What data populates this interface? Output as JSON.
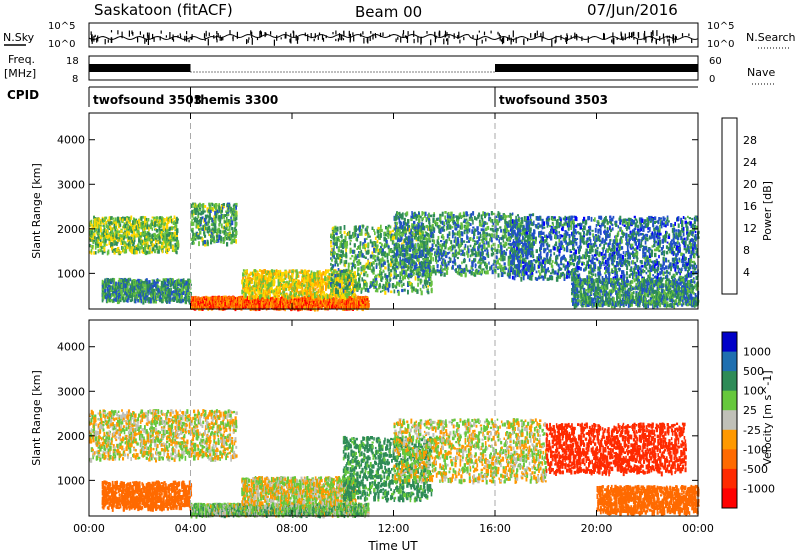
{
  "header": {
    "site": "Saskatoon (fitACF)",
    "beam": "Beam 00",
    "date": "07/Jun/2016"
  },
  "left_labels": {
    "nsky": "N.Sky",
    "freq": "Freq.",
    "freq_unit": "[MHz]",
    "cpid": "CPID"
  },
  "right_labels": {
    "nsearch": "N.Search",
    "nave": "Nave"
  },
  "noise_axis": {
    "left_top": "10^5",
    "left_bottom": "10^0",
    "right_top": "10^5",
    "right_bottom": "10^0"
  },
  "freq_axis": {
    "left_top": "18",
    "left_bottom": "8",
    "right_top": "60",
    "right_bottom": "0"
  },
  "cpid_segments": [
    {
      "label": "twofsound 3503",
      "start_hour": 0
    },
    {
      "label": "themis 3300",
      "start_hour": 4
    },
    {
      "label": "twofsound 3503",
      "start_hour": 16
    }
  ],
  "colors": {
    "power_scale": [
      "#0000ff",
      "#2050c8",
      "#2e8b57",
      "#66c040",
      "#ffd700",
      "#ffa500",
      "#ff6600",
      "#ff0000"
    ],
    "velocity_scale": [
      "#0000c8",
      "#1f6fb0",
      "#2e8b57",
      "#66c83c",
      "#c0c0b8",
      "#ff9900",
      "#ff6a00",
      "#ff2a00",
      "#ff0000"
    ],
    "ground_scatter": "#c0c0b8"
  },
  "chart_data": [
    {
      "type": "heatmap",
      "name": "power",
      "title": "",
      "xlabel": "",
      "ylabel": "Slant Range [km]",
      "xlim": [
        0,
        24
      ],
      "ylim": [
        200,
        4600
      ],
      "yticks": [
        "1000",
        "2000",
        "3000",
        "4000"
      ],
      "xticks": [
        "00:00",
        "04:00",
        "08:00",
        "12:00",
        "16:00",
        "20:00",
        "00:00"
      ],
      "colorbar_label": "Power [dB]",
      "colorbar_ticks": [
        "4",
        "8",
        "12",
        "16",
        "20",
        "24",
        "28"
      ],
      "colorbar_range": [
        0,
        30
      ],
      "regions": [
        {
          "t0": 0.0,
          "t1": 3.5,
          "r0": 1500,
          "r1": 2300,
          "value": 14
        },
        {
          "t0": 4.0,
          "t1": 5.8,
          "r0": 1700,
          "r1": 2600,
          "value": 12
        },
        {
          "t0": 0.5,
          "t1": 4.0,
          "r0": 400,
          "r1": 900,
          "value": 10
        },
        {
          "t0": 4.0,
          "t1": 11.0,
          "r0": 250,
          "r1": 500,
          "value": 26
        },
        {
          "t0": 6.0,
          "t1": 10.5,
          "r0": 500,
          "r1": 1100,
          "value": 18
        },
        {
          "t0": 9.5,
          "t1": 13.5,
          "r0": 600,
          "r1": 2100,
          "value": 12
        },
        {
          "t0": 12.0,
          "t1": 17.5,
          "r0": 1000,
          "r1": 2400,
          "value": 10
        },
        {
          "t0": 16.5,
          "t1": 24.0,
          "r0": 900,
          "r1": 2300,
          "value": 8
        },
        {
          "t0": 19.0,
          "t1": 24.0,
          "r0": 300,
          "r1": 900,
          "value": 10
        }
      ]
    },
    {
      "type": "heatmap",
      "name": "velocity",
      "title": "",
      "xlabel": "Time UT",
      "ylabel": "Slant Range [km]",
      "xlim": [
        0,
        24
      ],
      "ylim": [
        200,
        4600
      ],
      "yticks": [
        "1000",
        "2000",
        "3000",
        "4000"
      ],
      "xticks": [
        "00:00",
        "04:00",
        "08:00",
        "12:00",
        "16:00",
        "20:00",
        "00:00"
      ],
      "colorbar_label": "Velocity [m s^-1]",
      "colorbar_ticks": [
        "1000",
        "500",
        "100",
        "25",
        "-25",
        "-100",
        "-500",
        "-1000"
      ],
      "colorbar_range": [
        -1000,
        1000
      ],
      "regions": [
        {
          "t0": 0.0,
          "t1": 5.8,
          "r0": 1500,
          "r1": 2600,
          "value": 0
        },
        {
          "t0": 0.5,
          "t1": 4.0,
          "r0": 400,
          "r1": 1000,
          "value": -300
        },
        {
          "t0": 4.0,
          "t1": 11.0,
          "r0": 250,
          "r1": 500,
          "value": 60
        },
        {
          "t0": 6.0,
          "t1": 10.5,
          "r0": 500,
          "r1": 1100,
          "value": 0
        },
        {
          "t0": 10.0,
          "t1": 13.5,
          "r0": 600,
          "r1": 2000,
          "value": 150
        },
        {
          "t0": 12.0,
          "t1": 18.0,
          "r0": 1000,
          "r1": 2400,
          "value": 0
        },
        {
          "t0": 18.0,
          "t1": 23.5,
          "r0": 1200,
          "r1": 2300,
          "value": -600
        },
        {
          "t0": 20.0,
          "t1": 24.0,
          "r0": 300,
          "r1": 900,
          "value": -400
        }
      ]
    }
  ]
}
